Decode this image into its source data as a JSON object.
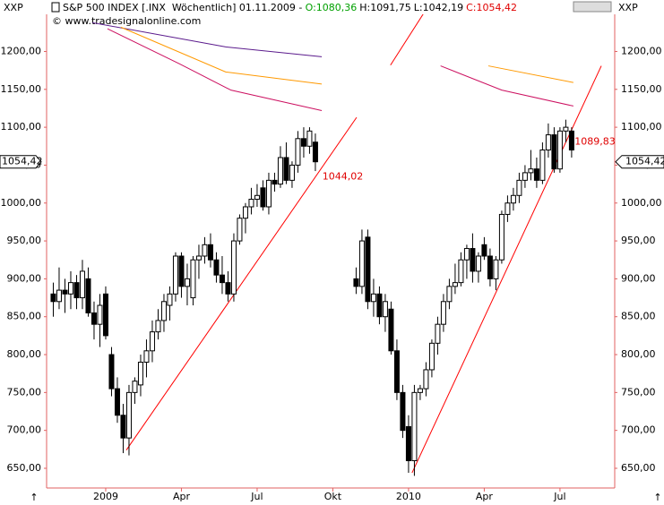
{
  "header": {
    "symbol_left": "XXP",
    "symbol_right": "XXP",
    "title": "S&P 500 INDEX [.INX  Wöchentlich] 01.11.2009 -",
    "open": "O:1080,36",
    "high": "H:1091,75",
    "low": "L:1042,19",
    "close": "C:1054,42",
    "copyright": "© www.tradesignalonline.com"
  },
  "chart_data": {
    "type": "candlestick",
    "x": [
      -9,
      -8,
      -7,
      -6,
      -5,
      -4,
      -3,
      -2,
      -1,
      0,
      1,
      2,
      3,
      4,
      5,
      6,
      7,
      8,
      9,
      10,
      11,
      12,
      13,
      14,
      15,
      16,
      17,
      18,
      19,
      20,
      21,
      22,
      23,
      24,
      25,
      26,
      27,
      28,
      29,
      30,
      31,
      32,
      33,
      34,
      35,
      36,
      43,
      44,
      45,
      46,
      47,
      48,
      49,
      50,
      51,
      52,
      53,
      54,
      55,
      56,
      57,
      58,
      59,
      60,
      61,
      62,
      63,
      64,
      65,
      66,
      67,
      68,
      69,
      70,
      71,
      72,
      73,
      74,
      75,
      76,
      77,
      78,
      79,
      80
    ],
    "open": [
      880,
      870,
      885,
      880,
      895,
      875,
      900,
      855,
      840,
      880,
      800,
      755,
      720,
      690,
      750,
      760,
      790,
      805,
      830,
      845,
      865,
      880,
      930,
      890,
      875,
      925,
      930,
      945,
      925,
      905,
      895,
      880,
      950,
      980,
      995,
      1005,
      1020,
      995,
      1030,
      1025,
      1060,
      1030,
      1050,
      1085,
      1075,
      1080.36,
      900,
      890,
      955,
      870,
      880,
      850,
      860,
      805,
      750,
      705,
      660,
      750,
      755,
      780,
      815,
      840,
      870,
      890,
      895,
      925,
      940,
      910,
      945,
      930,
      900,
      925,
      985,
      1000,
      1010,
      1030,
      1040,
      1045,
      1030,
      1070,
      1090,
      1045,
      1095,
      1095
    ],
    "high": [
      895,
      915,
      900,
      910,
      905,
      925,
      915,
      870,
      880,
      890,
      810,
      770,
      735,
      760,
      770,
      800,
      820,
      845,
      860,
      880,
      890,
      935,
      935,
      920,
      930,
      945,
      955,
      960,
      935,
      930,
      910,
      960,
      985,
      1000,
      1020,
      1025,
      1030,
      1040,
      1040,
      1075,
      1080,
      1055,
      1095,
      1100,
      1100,
      1091.75,
      915,
      965,
      965,
      900,
      890,
      880,
      870,
      820,
      760,
      720,
      760,
      760,
      790,
      820,
      850,
      880,
      900,
      920,
      935,
      945,
      960,
      935,
      955,
      940,
      930,
      990,
      1010,
      1020,
      1040,
      1050,
      1070,
      1060,
      1080,
      1105,
      1100,
      1100,
      1110,
      1100
    ],
    "low": [
      850,
      860,
      855,
      860,
      860,
      860,
      850,
      820,
      810,
      820,
      745,
      710,
      670,
      667,
      735,
      745,
      770,
      790,
      820,
      830,
      845,
      870,
      875,
      865,
      865,
      900,
      920,
      915,
      895,
      880,
      870,
      870,
      945,
      960,
      985,
      995,
      990,
      985,
      1015,
      1020,
      1025,
      1020,
      1040,
      1060,
      1065,
      1042.19,
      880,
      880,
      860,
      850,
      840,
      830,
      800,
      740,
      690,
      644,
      640,
      740,
      745,
      770,
      800,
      830,
      860,
      880,
      890,
      900,
      895,
      895,
      925,
      890,
      885,
      920,
      975,
      990,
      1000,
      1020,
      1030,
      1020,
      1025,
      1060,
      1040,
      1040,
      1080,
      1060
    ],
    "close": [
      870,
      885,
      880,
      895,
      875,
      910,
      855,
      840,
      865,
      825,
      755,
      720,
      690,
      750,
      765,
      790,
      805,
      830,
      845,
      870,
      880,
      930,
      890,
      900,
      925,
      930,
      945,
      925,
      905,
      895,
      880,
      950,
      980,
      995,
      1005,
      1010,
      995,
      1030,
      1025,
      1060,
      1030,
      1050,
      1085,
      1075,
      1095,
      1054.42,
      890,
      950,
      870,
      880,
      850,
      870,
      805,
      750,
      700,
      660,
      750,
      755,
      780,
      815,
      840,
      870,
      890,
      895,
      925,
      940,
      910,
      930,
      930,
      900,
      925,
      985,
      1000,
      1010,
      1030,
      1040,
      1045,
      1030,
      1070,
      1090,
      1045,
      1095,
      1100,
      1070
    ],
    "lines": [
      {
        "color": "#5a1a8c",
        "x": [
          -2.3,
          20.6,
          37.1
        ],
        "values": [
          1238,
          1206,
          1193
        ]
      },
      {
        "color": "#ff9900",
        "x": [
          2.6,
          20.6,
          37.1
        ],
        "values": [
          1232,
          1173,
          1157
        ]
      },
      {
        "color": "#cc1060",
        "x": [
          0.3,
          12.6,
          21.5,
          37.1
        ],
        "values": [
          1230,
          1184,
          1149,
          1122
        ]
      },
      {
        "color": "#ff9900",
        "x": [
          65.7,
          80.3
        ],
        "values": [
          1181,
          1159
        ]
      },
      {
        "color": "#cc1060",
        "x": [
          57.5,
          68,
          80.3
        ],
        "values": [
          1181,
          1149,
          1128
        ]
      },
      {
        "color": "#ff0000",
        "x": [
          3.54,
          43.08
        ],
        "values": [
          674,
          1113
        ]
      },
      {
        "color": "#ff0000",
        "x": [
          48.9,
          54.9
        ],
        "values": [
          1182,
          1254
        ]
      },
      {
        "color": "#ff0000",
        "x": [
          52.6,
          85.1
        ],
        "values": [
          644,
          1181
        ]
      }
    ],
    "annotations": [
      {
        "x": 36.9,
        "value": 1044.02,
        "label": "1044,02"
      },
      {
        "x": 80.2,
        "value": 1089.83,
        "label": "1089,83"
      }
    ],
    "last_price": {
      "value": 1054.42,
      "label": "1054,42"
    },
    "xlim": [
      -10.15,
      87.4
    ],
    "ylim": [
      624,
      1249
    ],
    "xticks": [
      {
        "value": 0,
        "label": "2009"
      },
      {
        "value": 13,
        "label": "Apr"
      },
      {
        "value": 26,
        "label": "Jul"
      },
      {
        "value": 39,
        "label": "Okt"
      },
      {
        "value": 52,
        "label": "2010"
      },
      {
        "value": 65,
        "label": "Apr"
      },
      {
        "value": 78,
        "label": "Jul"
      }
    ],
    "yticks": [
      {
        "value": 650,
        "label": "650,00"
      },
      {
        "value": 700,
        "label": "700,00"
      },
      {
        "value": 750,
        "label": "750,00"
      },
      {
        "value": 800,
        "label": "800,00"
      },
      {
        "value": 850,
        "label": "850,00"
      },
      {
        "value": 900,
        "label": "900,00"
      },
      {
        "value": 950,
        "label": "950,00"
      },
      {
        "value": 1000,
        "label": "1000,00"
      },
      {
        "value": 1050,
        "label": "1050,00"
      },
      {
        "value": 1100,
        "label": "1100,00"
      },
      {
        "value": 1150,
        "label": "1150,00"
      },
      {
        "value": 1200,
        "label": "1200,00"
      }
    ],
    "up_color": "#ffffff",
    "down_color": "#000000",
    "annotation_color": "#e00000"
  }
}
